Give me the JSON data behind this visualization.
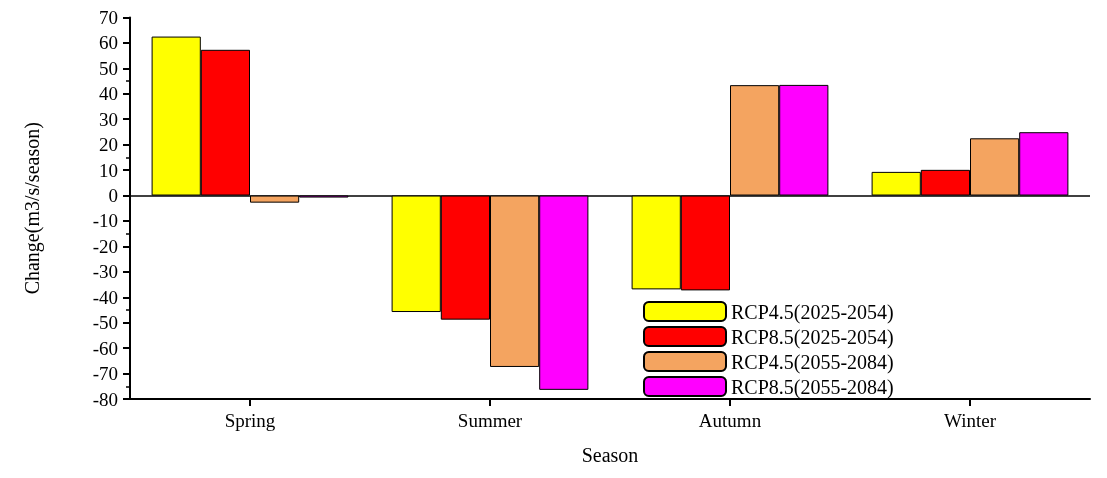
{
  "chart_data": {
    "type": "bar",
    "xlabel": "Season",
    "ylabel": "Change(m3/s/season)",
    "categories": [
      "Spring",
      "Summer",
      "Autumn",
      "Winter"
    ],
    "series": [
      {
        "name": "RCP4.5(2025-2054)",
        "color": "#ffff00",
        "values": [
          62.5,
          -45.8,
          -36.9,
          9.3
        ]
      },
      {
        "name": "RCP8.5(2025-2054)",
        "color": "#ff0000",
        "values": [
          57.3,
          -48.8,
          -37.3,
          10.1
        ]
      },
      {
        "name": "RCP4.5(2055-2084)",
        "color": "#f4a460",
        "values": [
          -2.8,
          -67.4,
          43.4,
          22.5
        ]
      },
      {
        "name": "RCP8.5(2055-2084)",
        "color": "#ff00ff",
        "values": [
          -0.8,
          -76.4,
          43.5,
          24.9
        ]
      }
    ],
    "ylim": [
      -80,
      70
    ],
    "yticks": [
      -80,
      -70,
      -60,
      -50,
      -40,
      -30,
      -20,
      -10,
      0,
      10,
      20,
      30,
      40,
      50,
      60,
      70
    ],
    "ref_lines": [
      {
        "axis": "y",
        "value": 0,
        "color": "#000000"
      }
    ],
    "grid": false,
    "legend": "bottom right"
  }
}
